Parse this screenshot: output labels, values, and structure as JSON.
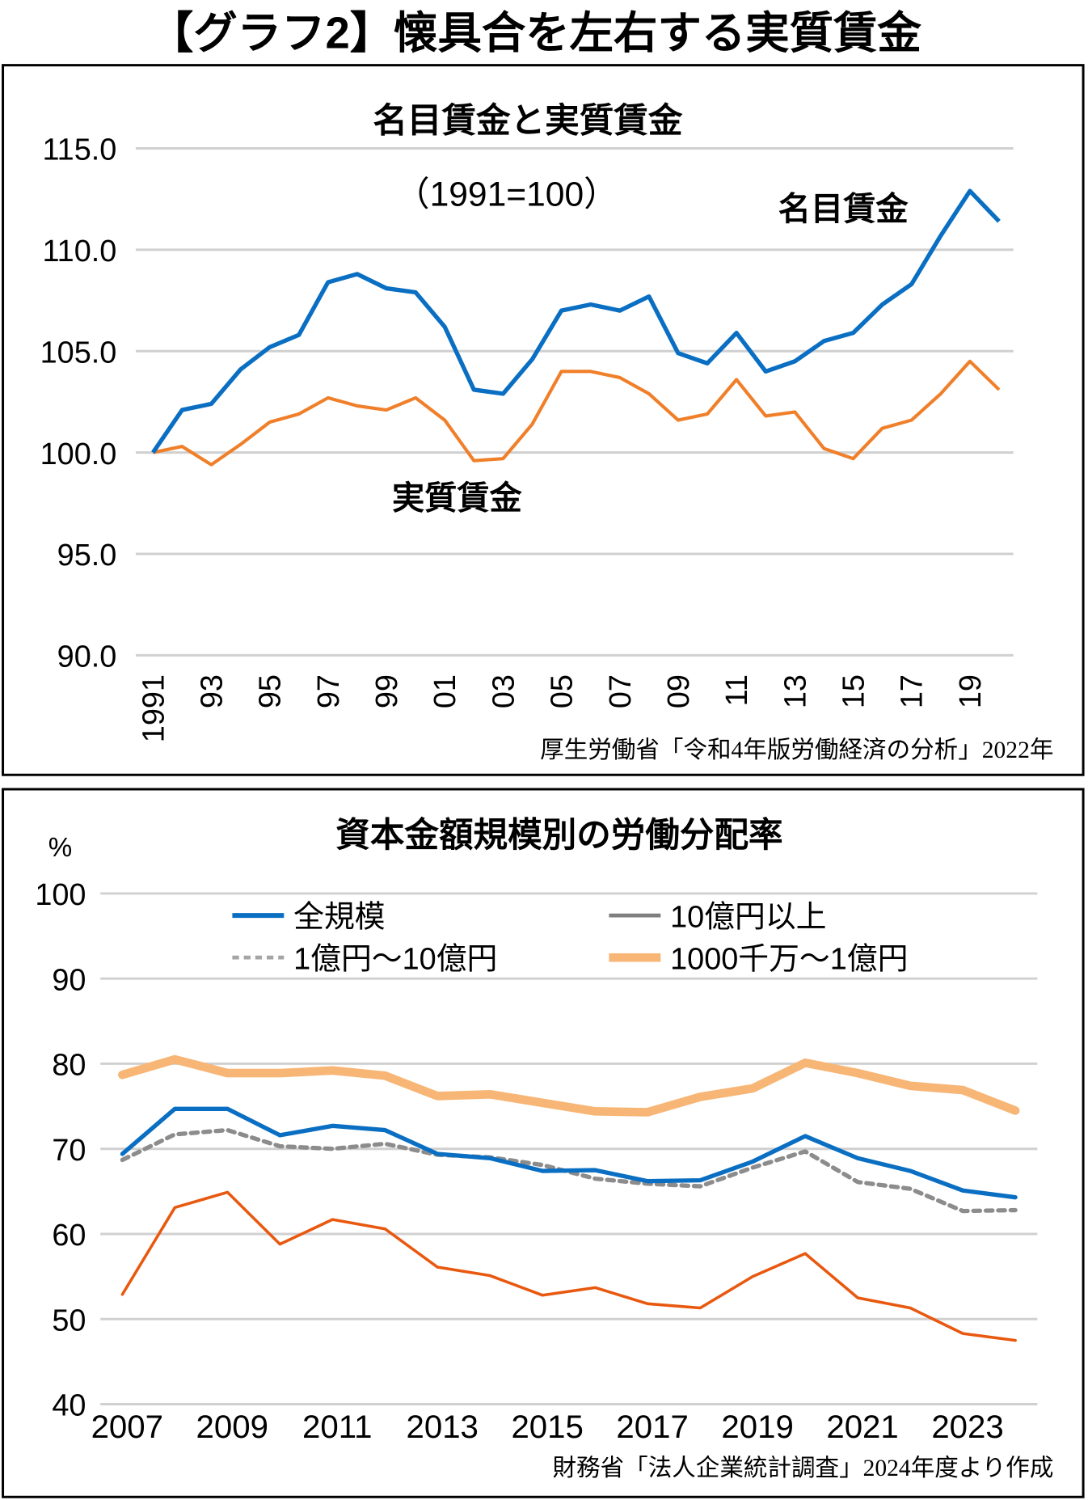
{
  "header": {
    "title": "【グラフ2】懐具合を左右する実質賃金"
  },
  "chart_data": [
    {
      "type": "line",
      "title": "名目賃金と実質賃金",
      "subtitle": "（1991=100）",
      "source": "厚生労働省「令和4年版労働経済の分析」2022年",
      "x": [
        1991,
        1992,
        1993,
        1994,
        1995,
        1996,
        1997,
        1998,
        1999,
        2000,
        2001,
        2002,
        2003,
        2004,
        2005,
        2006,
        2007,
        2008,
        2009,
        2010,
        2011,
        2012,
        2013,
        2014,
        2015,
        2016,
        2017,
        2018,
        2019,
        2020
      ],
      "x_tick_labels": [
        "1991",
        "93",
        "95",
        "97",
        "99",
        "01",
        "03",
        "05",
        "07",
        "09",
        "11",
        "13",
        "15",
        "17",
        "19"
      ],
      "y_tick_labels": [
        "115.0",
        "110.0",
        "105.0",
        "100.0",
        "95.0",
        "90.0"
      ],
      "ylim": [
        90,
        115
      ],
      "grid": true,
      "series": [
        {
          "name": "名目賃金",
          "color": "#0a6fc2",
          "values": [
            100,
            102.1,
            102.4,
            104.1,
            105.2,
            105.8,
            108.4,
            108.8,
            108.1,
            107.9,
            106.2,
            103.1,
            102.9,
            104.6,
            107.0,
            107.3,
            107.0,
            107.7,
            104.9,
            104.4,
            105.9,
            104.0,
            104.5,
            105.5,
            105.9,
            107.3,
            108.3,
            110.7,
            112.9,
            111.4
          ]
        },
        {
          "name": "実質賃金",
          "color": "#f07f2a",
          "values": [
            100,
            100.3,
            99.4,
            100.4,
            101.5,
            101.9,
            102.7,
            102.3,
            102.1,
            102.7,
            101.6,
            99.6,
            99.7,
            101.4,
            104.0,
            104.0,
            103.7,
            102.9,
            101.6,
            101.9,
            103.6,
            101.8,
            102.0,
            100.2,
            99.7,
            101.2,
            101.6,
            102.9,
            104.5,
            103.1
          ]
        }
      ]
    },
    {
      "type": "line",
      "title": "資本金額規模別の労働分配率",
      "ylabel": "%",
      "source": "財務省「法人企業統計調査」2024年度より作成",
      "x": [
        2007,
        2008,
        2009,
        2010,
        2011,
        2012,
        2013,
        2014,
        2015,
        2016,
        2017,
        2018,
        2019,
        2020,
        2021,
        2022,
        2023,
        2024
      ],
      "x_tick_labels": [
        "2007",
        "2009",
        "2011",
        "2013",
        "2015",
        "2017",
        "2019",
        "2021",
        "2023"
      ],
      "y_tick_labels": [
        "100",
        "90",
        "80",
        "70",
        "60",
        "50",
        "40"
      ],
      "ylim": [
        40,
        100
      ],
      "grid": true,
      "legend": "top",
      "series": [
        {
          "name": "全規模",
          "color": "#0a6fc2",
          "legend_color": "#0a6fc2",
          "style": "solid",
          "values": [
            69.4,
            74.7,
            74.7,
            71.6,
            72.7,
            72.2,
            69.4,
            68.9,
            67.4,
            67.5,
            66.2,
            66.3,
            68.5,
            71.5,
            68.9,
            67.4,
            65.1,
            64.3
          ]
        },
        {
          "name": "10億円以上",
          "color": "#e8580f",
          "legend_color": "#7f7f7f",
          "style": "solid",
          "values": [
            52.9,
            63.1,
            64.9,
            58.8,
            61.7,
            60.6,
            56.1,
            55.1,
            52.8,
            53.7,
            51.8,
            51.3,
            55.0,
            57.7,
            52.5,
            51.3,
            48.3,
            47.5
          ]
        },
        {
          "name": "1億円～10億円",
          "color": "#8c8c8c",
          "legend_color": "#a5a5a5",
          "style": "dashed",
          "values": [
            68.7,
            71.7,
            72.2,
            70.3,
            70.0,
            70.6,
            69.3,
            69.0,
            68.1,
            66.5,
            65.9,
            65.6,
            67.8,
            69.7,
            66.1,
            65.3,
            62.7,
            62.8
          ]
        },
        {
          "name": "1000千万～1億円",
          "color": "#f7b675",
          "legend_color": "#f7b675",
          "style": "thick",
          "values": [
            78.7,
            80.5,
            78.9,
            78.9,
            79.2,
            78.6,
            76.2,
            76.4,
            75.4,
            74.4,
            74.3,
            76.1,
            77.1,
            80.1,
            78.9,
            77.4,
            76.9,
            74.5
          ]
        }
      ]
    }
  ]
}
